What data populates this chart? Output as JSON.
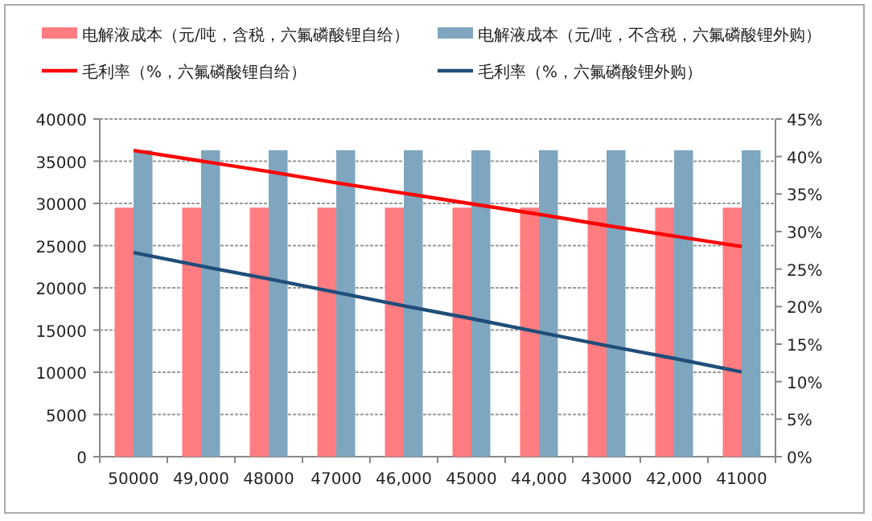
{
  "chart_data": {
    "type": "bar",
    "categories": [
      "50000",
      "49,000",
      "48000",
      "47000",
      "46,000",
      "45000",
      "44,000",
      "43000",
      "42,000",
      "41000"
    ],
    "series": [
      {
        "name": "电解液成本（元/吨，含税，六氟磷酸锂自给）",
        "color": "#ff7c80",
        "values": [
          29500,
          29500,
          29500,
          29500,
          29500,
          29500,
          29500,
          29500,
          29500,
          29500
        ]
      },
      {
        "name": "电解液成本（元/吨，不含税，六氟磷酸锂外购）",
        "color": "#7fa6bf",
        "values": [
          36300,
          36300,
          36300,
          36300,
          36300,
          36300,
          36300,
          36300,
          36300,
          36300
        ]
      },
      {
        "name": "毛利率（%，六氟磷酸锂自给）",
        "type": "line",
        "axis": "y2",
        "color": "#ff0000",
        "values": [
          40.8,
          39.4,
          38.0,
          36.5,
          35.1,
          33.7,
          32.3,
          30.8,
          29.4,
          28.0
        ]
      },
      {
        "name": "毛利率（%，六氟磷酸锂外购）",
        "type": "line",
        "axis": "y2",
        "color": "#1f4e79",
        "values": [
          27.2,
          25.4,
          23.7,
          21.9,
          20.1,
          18.4,
          16.6,
          14.8,
          13.1,
          11.3
        ]
      }
    ],
    "ylim": [
      0,
      40000
    ],
    "yticks": [
      0,
      5000,
      10000,
      15000,
      20000,
      25000,
      30000,
      35000,
      40000
    ],
    "y2lim": [
      0,
      45
    ],
    "y2ticks": [
      {
        "value": 0,
        "label": "0%"
      },
      {
        "value": 5,
        "label": "5%"
      },
      {
        "value": 10,
        "label": "10%"
      },
      {
        "value": 15,
        "label": "15%"
      },
      {
        "value": 20,
        "label": "20%"
      },
      {
        "value": 25,
        "label": "25%"
      },
      {
        "value": 30,
        "label": "30%"
      },
      {
        "value": 35,
        "label": "35%"
      },
      {
        "value": 40,
        "label": "40%"
      },
      {
        "value": 45,
        "label": "45%"
      }
    ],
    "grid": "y",
    "legend": "top"
  }
}
